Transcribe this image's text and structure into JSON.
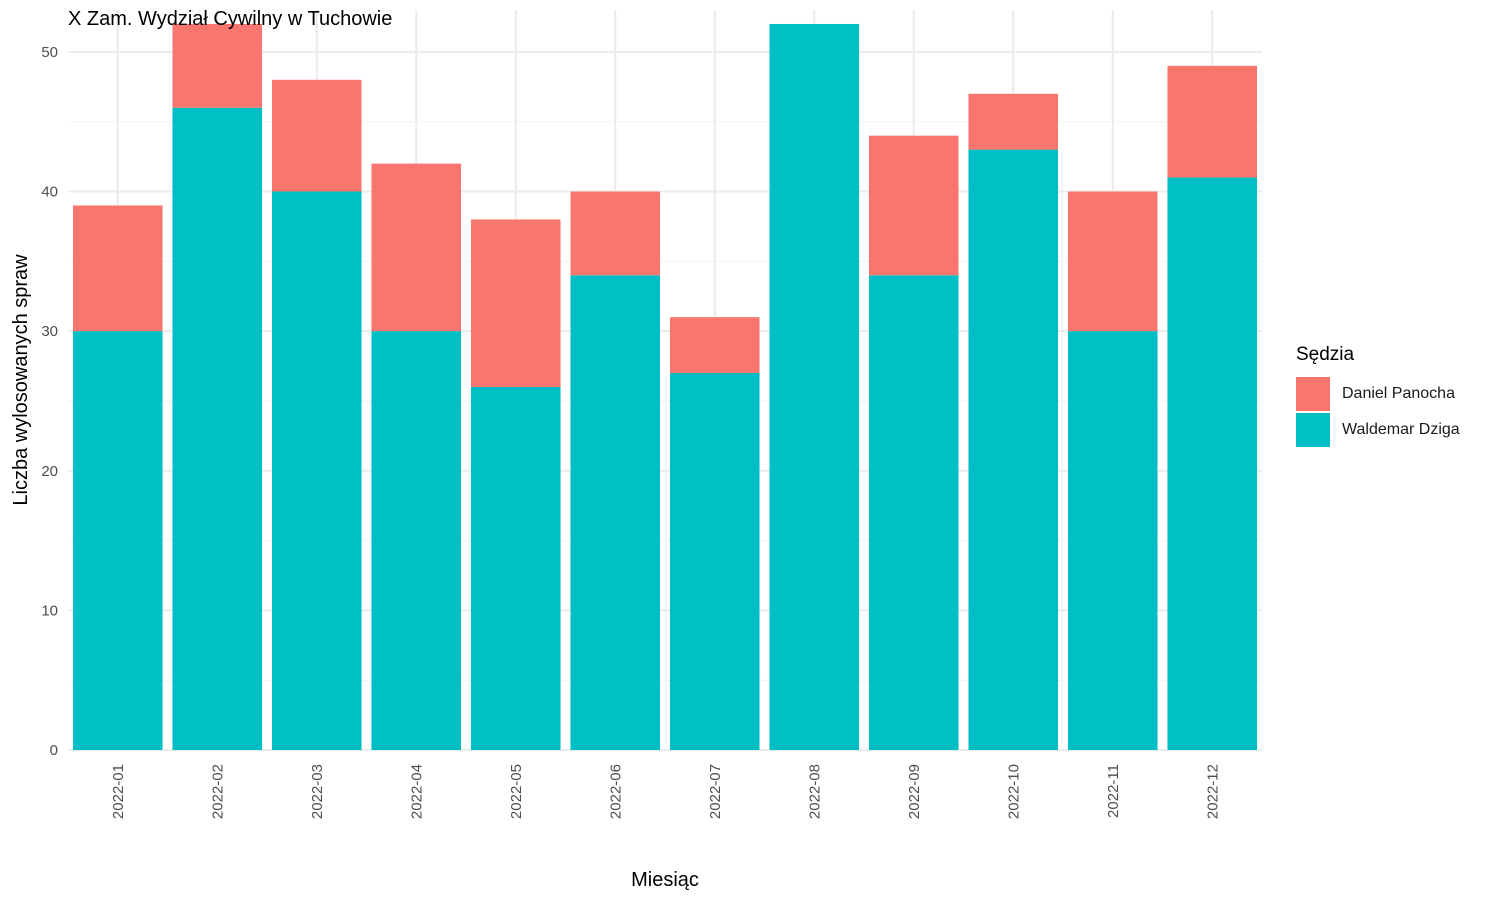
{
  "chart_data": {
    "type": "bar",
    "stacked": true,
    "title": "X Zam. Wydział Cywilny w Tuchowie",
    "xlabel": "Miesiąc",
    "ylabel": "Liczba wylosowanych spraw",
    "ylim": [
      0,
      53
    ],
    "yticks": [
      0,
      10,
      20,
      30,
      40,
      50
    ],
    "grid": true,
    "legend_title": "Sędzia",
    "legend_position": "right",
    "categories": [
      "2022-01",
      "2022-02",
      "2022-03",
      "2022-04",
      "2022-05",
      "2022-06",
      "2022-07",
      "2022-08",
      "2022-09",
      "2022-10",
      "2022-11",
      "2022-12"
    ],
    "series": [
      {
        "name": "Waldemar Dziga",
        "color": "#00BFC4",
        "values": [
          30,
          46,
          40,
          30,
          26,
          34,
          27,
          52,
          34,
          43,
          30,
          41
        ]
      },
      {
        "name": "Daniel Panocha",
        "color": "#F8766D",
        "values": [
          9,
          6,
          8,
          12,
          12,
          6,
          4,
          0,
          10,
          4,
          10,
          8
        ]
      }
    ],
    "legend_order": [
      "Daniel Panocha",
      "Waldemar Dziga"
    ]
  }
}
